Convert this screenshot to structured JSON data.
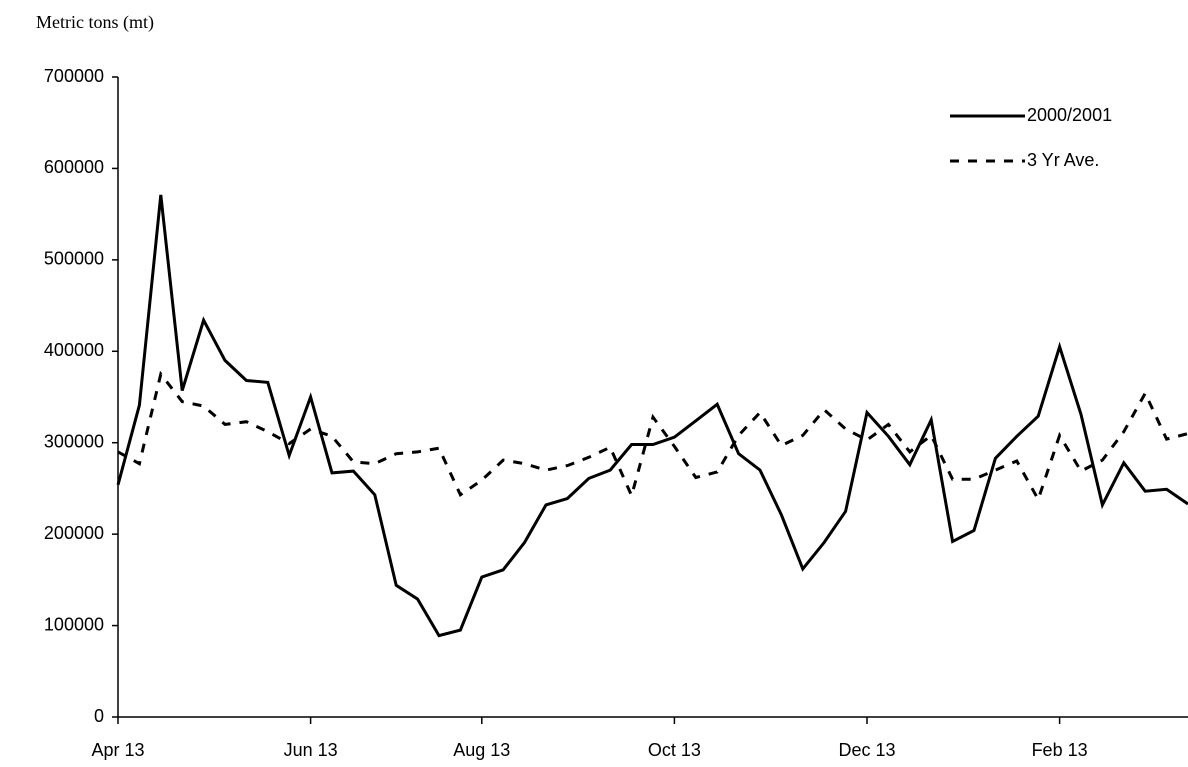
{
  "chart_data": {
    "type": "line",
    "y_label": "Metric tons (mt)",
    "categories": [
      "Apr 13",
      null,
      null,
      null,
      null,
      null,
      null,
      null,
      null,
      "Jun 13",
      null,
      null,
      null,
      null,
      null,
      null,
      null,
      "Aug 13",
      null,
      null,
      null,
      null,
      null,
      null,
      null,
      null,
      "Oct 13",
      null,
      null,
      null,
      null,
      null,
      null,
      null,
      null,
      "Dec 13",
      null,
      null,
      null,
      null,
      null,
      null,
      null,
      null,
      "Feb 13",
      null,
      null,
      null,
      null,
      null,
      null
    ],
    "series": [
      {
        "name": "2000/2001",
        "color": "#000000",
        "dash": "solid",
        "values": [
          254000,
          341000,
          571000,
          357000,
          434000,
          390000,
          368000,
          366000,
          286000,
          350000,
          267000,
          269000,
          243000,
          144000,
          129000,
          89000,
          95000,
          153000,
          161000,
          191000,
          232000,
          239000,
          261000,
          270000,
          298000,
          298000,
          306000,
          324000,
          342000,
          288000,
          270000,
          221000,
          162000,
          191000,
          225000,
          333000,
          307000,
          276000,
          325000,
          192000,
          204000,
          283000,
          307000,
          329000,
          405000,
          331000,
          232000,
          278000,
          247000,
          249000,
          233000
        ]
      },
      {
        "name": "3 Yr Ave.",
        "color": "#000000",
        "dash": "dashed",
        "values": [
          290000,
          277000,
          375000,
          345000,
          340000,
          320000,
          323000,
          312000,
          299000,
          315000,
          307000,
          279000,
          277000,
          288000,
          290000,
          294000,
          243000,
          259000,
          281000,
          277000,
          270000,
          275000,
          284000,
          295000,
          242000,
          328000,
          296000,
          262000,
          268000,
          308000,
          333000,
          297000,
          308000,
          336000,
          315000,
          303000,
          320000,
          290000,
          308000,
          260000,
          260000,
          270000,
          280000,
          238000,
          308000,
          269000,
          281000,
          312000,
          354000,
          304000,
          310000
        ]
      }
    ],
    "ylim": [
      0,
      700000
    ],
    "yticks": [
      0,
      100000,
      200000,
      300000,
      400000,
      500000,
      600000,
      700000
    ],
    "grid": false,
    "legend": "top-right"
  }
}
